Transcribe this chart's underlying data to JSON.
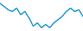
{
  "x": [
    0,
    1,
    2,
    3,
    4,
    5,
    6,
    7,
    8,
    9,
    10,
    11,
    12,
    13,
    14,
    15,
    16,
    17,
    18,
    19,
    20
  ],
  "y": [
    22,
    20,
    18,
    17,
    19,
    15,
    17,
    13,
    8,
    10,
    7,
    9,
    7,
    10,
    12,
    14,
    17,
    19,
    17,
    18,
    14
  ],
  "line_color": "#2b9fd4",
  "linewidth": 1.4,
  "background_color": "#ffffff",
  "ylim": [
    5,
    24
  ],
  "xlim": [
    0,
    20
  ]
}
